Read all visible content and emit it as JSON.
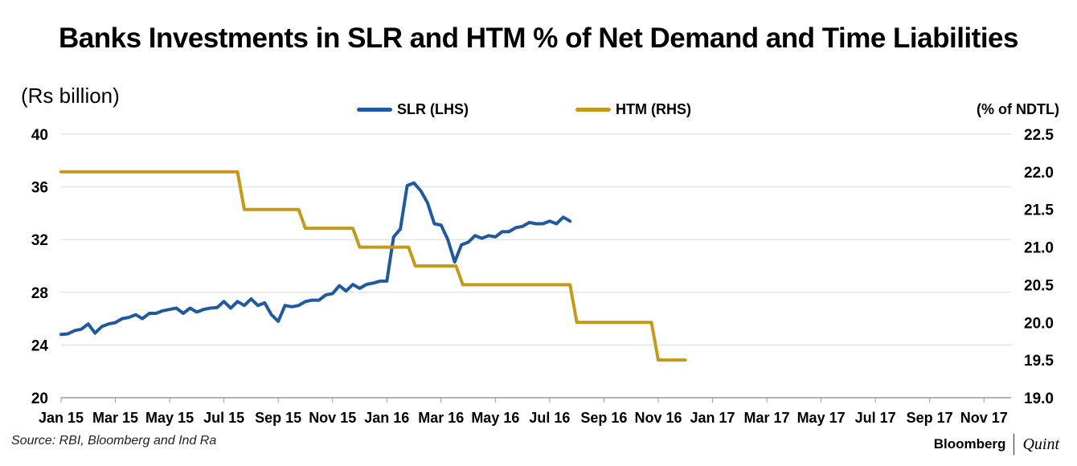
{
  "chart_data": {
    "type": "line",
    "title": "Banks Investments in SLR and HTM % of Net Demand and Time Liabilities",
    "left_axis_label": "(Rs billion)",
    "right_axis_label": "(% of NDTL)",
    "y_left_lim": [
      20,
      40
    ],
    "y_left_ticks": [
      "40",
      "36",
      "32",
      "28",
      "24",
      "20"
    ],
    "y_right_lim": [
      19.0,
      22.5
    ],
    "y_right_ticks": [
      "22.5",
      "22.0",
      "21.5",
      "21.0",
      "20.5",
      "20.0",
      "19.5",
      "19.0"
    ],
    "x_tick_labels": [
      "Jan 15",
      "Mar 15",
      "May 15",
      "Jul 15",
      "Sep 15",
      "Nov 15",
      "Jan 16",
      "Mar 16",
      "May 16",
      "Jul 16",
      "Sep 16",
      "Nov 16",
      "Jan 17",
      "Mar 17",
      "May 17",
      "Jul 17",
      "Sep 17",
      "Nov 17"
    ],
    "x_tick_months": [
      0,
      2,
      4,
      6,
      8,
      10,
      12,
      14,
      16,
      18,
      20,
      22,
      24,
      26,
      28,
      30,
      32,
      34
    ],
    "x_range_months": [
      0,
      35
    ],
    "gridlines": true,
    "legend": "top-center",
    "series": [
      {
        "name": "SLR (LHS)",
        "axis": "left",
        "color": "#1f5aa0",
        "points": [
          [
            0.0,
            24.8
          ],
          [
            0.25,
            24.85
          ],
          [
            0.5,
            25.1
          ],
          [
            0.75,
            25.2
          ],
          [
            1.0,
            25.6
          ],
          [
            1.25,
            24.9
          ],
          [
            1.5,
            25.4
          ],
          [
            1.75,
            25.6
          ],
          [
            2.0,
            25.7
          ],
          [
            2.25,
            26.0
          ],
          [
            2.5,
            26.1
          ],
          [
            2.75,
            26.3
          ],
          [
            3.0,
            26.0
          ],
          [
            3.25,
            26.4
          ],
          [
            3.5,
            26.4
          ],
          [
            3.75,
            26.6
          ],
          [
            4.0,
            26.7
          ],
          [
            4.25,
            26.8
          ],
          [
            4.5,
            26.4
          ],
          [
            4.75,
            26.8
          ],
          [
            5.0,
            26.5
          ],
          [
            5.25,
            26.7
          ],
          [
            5.5,
            26.8
          ],
          [
            5.75,
            26.85
          ],
          [
            6.0,
            27.3
          ],
          [
            6.25,
            26.8
          ],
          [
            6.5,
            27.3
          ],
          [
            6.75,
            27.0
          ],
          [
            7.0,
            27.5
          ],
          [
            7.25,
            27.0
          ],
          [
            7.5,
            27.2
          ],
          [
            7.75,
            26.3
          ],
          [
            8.0,
            25.8
          ],
          [
            8.25,
            27.0
          ],
          [
            8.5,
            26.9
          ],
          [
            8.75,
            27.0
          ],
          [
            9.0,
            27.3
          ],
          [
            9.25,
            27.4
          ],
          [
            9.5,
            27.4
          ],
          [
            9.75,
            27.8
          ],
          [
            10.0,
            27.9
          ],
          [
            10.25,
            28.5
          ],
          [
            10.5,
            28.1
          ],
          [
            10.75,
            28.6
          ],
          [
            11.0,
            28.3
          ],
          [
            11.25,
            28.6
          ],
          [
            11.5,
            28.7
          ],
          [
            11.75,
            28.85
          ],
          [
            12.0,
            28.85
          ],
          [
            12.25,
            32.2
          ],
          [
            12.5,
            32.8
          ],
          [
            12.75,
            36.1
          ],
          [
            13.0,
            36.3
          ],
          [
            13.25,
            35.7
          ],
          [
            13.5,
            34.8
          ],
          [
            13.75,
            33.2
          ],
          [
            14.0,
            33.1
          ],
          [
            14.25,
            32.0
          ],
          [
            14.5,
            30.3
          ],
          [
            14.75,
            31.6
          ],
          [
            15.0,
            31.8
          ],
          [
            15.25,
            32.3
          ],
          [
            15.5,
            32.1
          ],
          [
            15.75,
            32.3
          ],
          [
            16.0,
            32.2
          ],
          [
            16.25,
            32.6
          ],
          [
            16.5,
            32.6
          ],
          [
            16.75,
            32.9
          ],
          [
            17.0,
            33.0
          ],
          [
            17.25,
            33.3
          ],
          [
            17.5,
            33.2
          ],
          [
            17.75,
            33.2
          ],
          [
            18.0,
            33.4
          ],
          [
            18.25,
            33.2
          ],
          [
            18.5,
            33.7
          ],
          [
            18.75,
            33.4
          ]
        ]
      },
      {
        "name": "HTM (RHS)",
        "axis": "right",
        "color": "#c39a1a",
        "points": [
          [
            0.0,
            22.0
          ],
          [
            6.5,
            22.0
          ],
          [
            6.75,
            21.5
          ],
          [
            8.75,
            21.5
          ],
          [
            9.0,
            21.25
          ],
          [
            10.75,
            21.25
          ],
          [
            11.0,
            21.0
          ],
          [
            12.8,
            21.0
          ],
          [
            13.05,
            20.75
          ],
          [
            14.55,
            20.75
          ],
          [
            14.8,
            20.5
          ],
          [
            18.75,
            20.5
          ],
          [
            19.0,
            20.0
          ],
          [
            21.75,
            20.0
          ],
          [
            22.0,
            19.5
          ],
          [
            23.0,
            19.5
          ]
        ]
      }
    ]
  },
  "footer": {
    "source": "Source: RBI, Bloomberg and Ind Ra",
    "brand_left": "Bloomberg",
    "brand_right": "Quint"
  }
}
